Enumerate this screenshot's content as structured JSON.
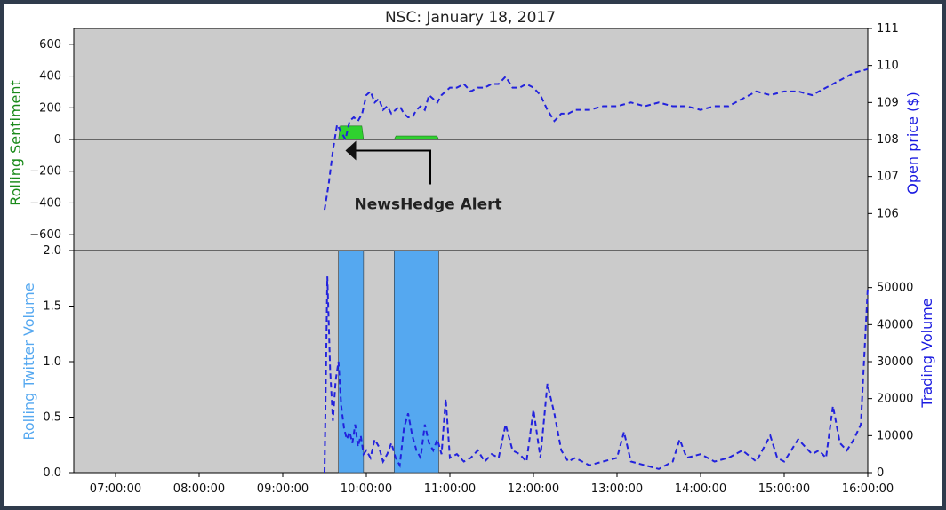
{
  "figure": {
    "title": "NSC: January 18, 2017",
    "colors": {
      "plot_bg": "#cbcbcb",
      "sentiment_bar": "#2fd12f",
      "twitter_bar": "#55a8f0",
      "price_line": "#2222dd",
      "left_label_top": "#1a8a1a",
      "left_label_bottom": "#55a8f0",
      "right_label": "#1a1ae0",
      "border": "#2f3b4c"
    }
  },
  "chart_data": [
    {
      "panel": "top",
      "type": "line",
      "title": "NSC: January 18, 2017",
      "ylabel": "Rolling Sentiment",
      "ylabel_right": "Open price ($)",
      "ylim": [
        -700,
        700
      ],
      "ylim_right": [
        105,
        111
      ],
      "yticks": [
        -600,
        -400,
        -200,
        0,
        200,
        400,
        600
      ],
      "yticks_right": [
        106,
        107,
        108,
        109,
        110,
        111
      ],
      "x_hours_range": [
        6.5,
        16.0
      ],
      "sentiment_bars": [
        {
          "start": "09:40",
          "end": "09:58",
          "value": 85
        },
        {
          "start": "10:20",
          "end": "10:52",
          "value": 22
        }
      ],
      "annotation": {
        "text": "NewsHedge Alert",
        "arrow_to_time": "09:45",
        "arrow_to_value": -70
      },
      "series": [
        {
          "name": "",
          "style": "dashed",
          "x": [
            "09:30",
            "09:33",
            "09:36",
            "09:39",
            "09:42",
            "09:45",
            "09:48",
            "09:51",
            "09:54",
            "09:57",
            "10:00",
            "10:03",
            "10:06",
            "10:09",
            "10:12",
            "10:15",
            "10:18",
            "10:21",
            "10:24",
            "10:27",
            "10:30",
            "10:33",
            "10:36",
            "10:39",
            "10:42",
            "10:45",
            "10:48",
            "10:51",
            "10:54",
            "10:57",
            "11:00",
            "11:05",
            "11:10",
            "11:15",
            "11:20",
            "11:25",
            "11:30",
            "11:35",
            "11:40",
            "11:45",
            "11:50",
            "11:55",
            "12:00",
            "12:05",
            "12:10",
            "12:15",
            "12:20",
            "12:25",
            "12:30",
            "12:40",
            "12:50",
            "13:00",
            "13:10",
            "13:20",
            "13:30",
            "13:40",
            "13:50",
            "14:00",
            "14:10",
            "14:20",
            "14:30",
            "14:40",
            "14:50",
            "15:00",
            "15:10",
            "15:20",
            "15:30",
            "15:40",
            "15:50",
            "16:00"
          ],
          "y": [
            106.1,
            106.8,
            107.7,
            108.4,
            108.2,
            108.0,
            108.5,
            108.6,
            108.5,
            108.7,
            109.2,
            109.3,
            109.0,
            109.1,
            108.8,
            108.9,
            108.7,
            108.8,
            108.9,
            108.7,
            108.6,
            108.6,
            108.8,
            108.9,
            108.8,
            109.2,
            109.1,
            109.0,
            109.2,
            109.3,
            109.4,
            109.4,
            109.5,
            109.3,
            109.4,
            109.4,
            109.5,
            109.5,
            109.7,
            109.4,
            109.4,
            109.5,
            109.4,
            109.2,
            108.8,
            108.5,
            108.7,
            108.7,
            108.8,
            108.8,
            108.9,
            108.9,
            109.0,
            108.9,
            109.0,
            108.9,
            108.9,
            108.8,
            108.9,
            108.9,
            109.1,
            109.3,
            109.2,
            109.3,
            109.3,
            109.2,
            109.4,
            109.6,
            109.8,
            109.9
          ]
        }
      ]
    },
    {
      "panel": "bottom",
      "type": "bar",
      "ylabel": "Rolling Twitter Volume",
      "ylabel_right": "Trading Volume",
      "ylim": [
        0,
        2.0
      ],
      "ylim_right": [
        0,
        60000
      ],
      "yticks": [
        0.0,
        0.5,
        1.0,
        1.5,
        2.0
      ],
      "yticks_right": [
        0,
        10000,
        20000,
        30000,
        40000,
        50000
      ],
      "xticks": [
        "07:00:00",
        "08:00:00",
        "09:00:00",
        "10:00:00",
        "11:00:00",
        "12:00:00",
        "13:00:00",
        "14:00:00",
        "15:00:00",
        "16:00:00"
      ],
      "twitter_bars": [
        {
          "start": "09:40",
          "end": "09:58",
          "value": 2.0
        },
        {
          "start": "10:20",
          "end": "10:52",
          "value": 2.0
        }
      ],
      "series": [
        {
          "name": "",
          "style": "dashed",
          "x": [
            "09:30",
            "09:32",
            "09:34",
            "09:36",
            "09:38",
            "09:40",
            "09:42",
            "09:44",
            "09:46",
            "09:48",
            "09:50",
            "09:52",
            "09:54",
            "09:56",
            "09:58",
            "10:00",
            "10:03",
            "10:06",
            "10:09",
            "10:12",
            "10:15",
            "10:18",
            "10:21",
            "10:24",
            "10:27",
            "10:30",
            "10:33",
            "10:36",
            "10:39",
            "10:42",
            "10:45",
            "10:48",
            "10:51",
            "10:54",
            "10:57",
            "11:00",
            "11:05",
            "11:10",
            "11:15",
            "11:20",
            "11:25",
            "11:30",
            "11:35",
            "11:40",
            "11:45",
            "11:50",
            "11:55",
            "12:00",
            "12:05",
            "12:10",
            "12:15",
            "12:20",
            "12:25",
            "12:30",
            "12:40",
            "12:50",
            "13:00",
            "13:05",
            "13:10",
            "13:20",
            "13:30",
            "13:40",
            "13:45",
            "13:50",
            "14:00",
            "14:10",
            "14:20",
            "14:30",
            "14:40",
            "14:50",
            "14:55",
            "15:00",
            "15:10",
            "15:20",
            "15:25",
            "15:30",
            "15:35",
            "15:40",
            "15:45",
            "15:50",
            "15:55",
            "16:00"
          ],
          "y": [
            0,
            53000,
            28000,
            14000,
            25000,
            30000,
            18000,
            12000,
            9000,
            11000,
            8000,
            13000,
            7000,
            10000,
            5000,
            6000,
            4000,
            9000,
            7000,
            3000,
            5000,
            8000,
            4000,
            2000,
            12000,
            16000,
            10000,
            6000,
            4000,
            13000,
            8000,
            6000,
            9000,
            5000,
            20000,
            4000,
            5000,
            3000,
            4000,
            6000,
            3000,
            5000,
            4000,
            13000,
            6000,
            5000,
            3000,
            17000,
            4000,
            24000,
            16000,
            6000,
            3000,
            4000,
            2000,
            3000,
            4000,
            11000,
            3000,
            2000,
            1000,
            3000,
            9000,
            4000,
            5000,
            3000,
            4000,
            6000,
            3000,
            10000,
            4000,
            3000,
            9000,
            5000,
            6000,
            4000,
            18000,
            8000,
            6000,
            9000,
            13000,
            50000
          ]
        }
      ]
    }
  ]
}
